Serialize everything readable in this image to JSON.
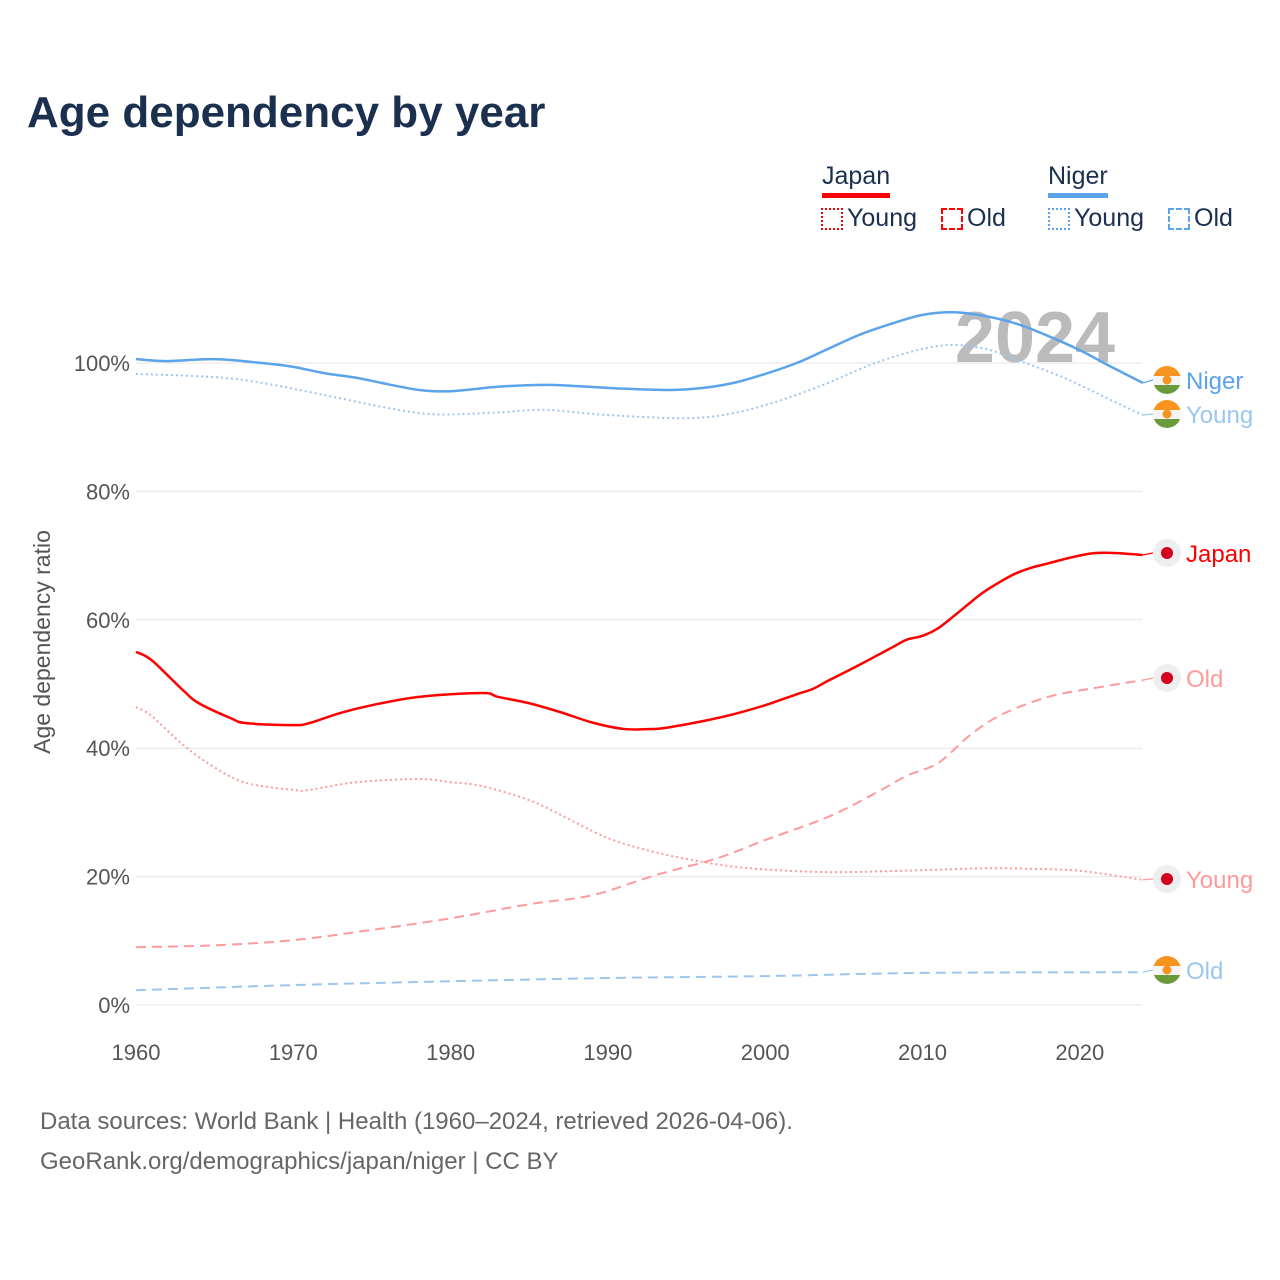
{
  "title": "Age dependency by year",
  "legend": {
    "groups": [
      {
        "name": "Japan",
        "color": "#ff0000",
        "items": [
          "Young",
          "Old"
        ]
      },
      {
        "name": "Niger",
        "color": "#5ba3ea",
        "items": [
          "Young",
          "Old"
        ]
      }
    ]
  },
  "year_watermark": "2024",
  "footer": {
    "line1": "Data sources: World Bank | Health (1960–2024, retrieved 2026-04-06).",
    "line2": "GeoRank.org/demographics/japan/niger | CC BY"
  },
  "chart_data": {
    "type": "line",
    "title": "Age dependency by year",
    "xlabel": "",
    "ylabel": "Age dependency ratio",
    "xlim": [
      1960,
      2024
    ],
    "ylim": [
      0,
      110
    ],
    "x_ticks": [
      1960,
      1970,
      1980,
      1990,
      2000,
      2010,
      2020
    ],
    "y_ticks": [
      0,
      20,
      40,
      60,
      80,
      100
    ],
    "y_tick_labels": [
      "0%",
      "20%",
      "40%",
      "60%",
      "80%",
      "100%"
    ],
    "grid": true,
    "series": [
      {
        "name": "Niger",
        "end_label": "Niger",
        "color": "#5ba3ea",
        "dash": "solid",
        "points": [
          [
            1960,
            100.6
          ],
          [
            1962,
            100.3
          ],
          [
            1965,
            100.6
          ],
          [
            1968,
            100
          ],
          [
            1970,
            99.4
          ],
          [
            1972,
            98.4
          ],
          [
            1974,
            97.7
          ],
          [
            1976,
            96.7
          ],
          [
            1978,
            95.8
          ],
          [
            1980,
            95.6
          ],
          [
            1983,
            96.3
          ],
          [
            1986,
            96.6
          ],
          [
            1988,
            96.4
          ],
          [
            1991,
            96
          ],
          [
            1994,
            95.8
          ],
          [
            1996,
            96.1
          ],
          [
            1998,
            96.9
          ],
          [
            2000,
            98.3
          ],
          [
            2002,
            100
          ],
          [
            2004,
            102.2
          ],
          [
            2006,
            104.4
          ],
          [
            2008,
            106.1
          ],
          [
            2010,
            107.5
          ],
          [
            2012,
            107.9
          ],
          [
            2014,
            107.3
          ],
          [
            2016,
            106.1
          ],
          [
            2018,
            104.2
          ],
          [
            2020,
            102
          ],
          [
            2022,
            99.4
          ],
          [
            2024,
            96.9
          ]
        ]
      },
      {
        "name": "Niger Young",
        "end_label": "Young",
        "color": "#9cc6f2",
        "dash": "dotted",
        "points": [
          [
            1960,
            98.3
          ],
          [
            1965,
            97.8
          ],
          [
            1968,
            96.9
          ],
          [
            1972,
            95
          ],
          [
            1976,
            93
          ],
          [
            1979,
            92
          ],
          [
            1983,
            92.3
          ],
          [
            1986,
            92.7
          ],
          [
            1990,
            91.9
          ],
          [
            1995,
            91.4
          ],
          [
            1998,
            92.2
          ],
          [
            2001,
            94.2
          ],
          [
            2004,
            96.9
          ],
          [
            2007,
            100
          ],
          [
            2010,
            102.2
          ],
          [
            2012,
            102.8
          ],
          [
            2014,
            102.2
          ],
          [
            2016,
            100.5
          ],
          [
            2019,
            97.7
          ],
          [
            2022,
            94.2
          ],
          [
            2024,
            91.9
          ]
        ]
      },
      {
        "name": "Japan",
        "end_label": "Japan",
        "color": "#ff0000",
        "dash": "solid",
        "points": [
          [
            1960,
            55
          ],
          [
            1961,
            53.7
          ],
          [
            1963,
            49
          ],
          [
            1964,
            47
          ],
          [
            1966,
            44.7
          ],
          [
            1967,
            43.9
          ],
          [
            1970,
            43.6
          ],
          [
            1971,
            43.9
          ],
          [
            1973,
            45.5
          ],
          [
            1975,
            46.7
          ],
          [
            1978,
            48
          ],
          [
            1982,
            48.6
          ],
          [
            1983,
            48
          ],
          [
            1985,
            47
          ],
          [
            1987,
            45.6
          ],
          [
            1989,
            44
          ],
          [
            1991,
            43
          ],
          [
            1993,
            43
          ],
          [
            1994,
            43.3
          ],
          [
            1996,
            44.2
          ],
          [
            1998,
            45.3
          ],
          [
            2000,
            46.7
          ],
          [
            2002,
            48.4
          ],
          [
            2003,
            49.2
          ],
          [
            2004,
            50.5
          ],
          [
            2006,
            53
          ],
          [
            2008,
            55.6
          ],
          [
            2009,
            56.9
          ],
          [
            2010,
            57.5
          ],
          [
            2011,
            58.7
          ],
          [
            2012,
            60.6
          ],
          [
            2013,
            62.6
          ],
          [
            2014,
            64.5
          ],
          [
            2016,
            67.3
          ],
          [
            2018,
            68.8
          ],
          [
            2021,
            70.4
          ],
          [
            2024,
            70.1
          ]
        ]
      },
      {
        "name": "Japan Old",
        "end_label": "Old",
        "color": "#ff9a9a",
        "dash": "dashed",
        "points": [
          [
            1960,
            9
          ],
          [
            1965,
            9.3
          ],
          [
            1970,
            10.1
          ],
          [
            1975,
            11.7
          ],
          [
            1980,
            13.5
          ],
          [
            1985,
            15.7
          ],
          [
            1989,
            17.1
          ],
          [
            1993,
            20.2
          ],
          [
            1997,
            22.9
          ],
          [
            2000,
            25.7
          ],
          [
            2004,
            29.3
          ],
          [
            2007,
            33
          ],
          [
            2009,
            35.7
          ],
          [
            2011,
            37.7
          ],
          [
            2013,
            42
          ],
          [
            2015,
            45.2
          ],
          [
            2018,
            48
          ],
          [
            2021,
            49.4
          ],
          [
            2024,
            50.6
          ]
        ]
      },
      {
        "name": "Japan Young",
        "end_label": "Young",
        "color": "#ff9a9a",
        "dash": "dotted",
        "points": [
          [
            1960,
            46.4
          ],
          [
            1961,
            45
          ],
          [
            1963,
            40.5
          ],
          [
            1965,
            37
          ],
          [
            1967,
            34.6
          ],
          [
            1970,
            33.5
          ],
          [
            1971,
            33.5
          ],
          [
            1974,
            34.7
          ],
          [
            1978,
            35.2
          ],
          [
            1980,
            34.7
          ],
          [
            1982,
            34.1
          ],
          [
            1985,
            31.9
          ],
          [
            1987,
            29.6
          ],
          [
            1990,
            26
          ],
          [
            1993,
            23.8
          ],
          [
            1996,
            22.3
          ],
          [
            1999,
            21.3
          ],
          [
            2004,
            20.7
          ],
          [
            2010,
            21
          ],
          [
            2014,
            21.3
          ],
          [
            2017,
            21.2
          ],
          [
            2020,
            20.9
          ],
          [
            2024,
            19.5
          ]
        ]
      },
      {
        "name": "Niger Old",
        "end_label": "Old",
        "color": "#9cc6f2",
        "dash": "dashed",
        "points": [
          [
            1960,
            2.3
          ],
          [
            1970,
            3.1
          ],
          [
            1980,
            3.7
          ],
          [
            1990,
            4.2
          ],
          [
            2000,
            4.5
          ],
          [
            2010,
            5
          ],
          [
            2024,
            5.1
          ]
        ]
      }
    ]
  }
}
